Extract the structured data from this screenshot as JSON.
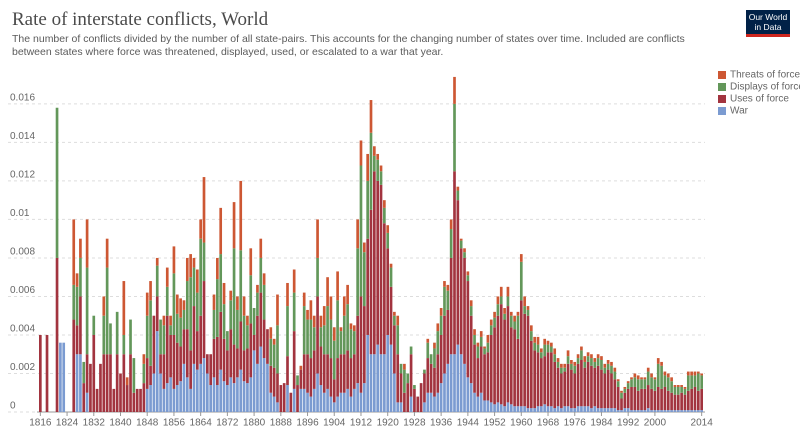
{
  "chart_data": {
    "type": "stacked-bar",
    "title": "Rate of interstate conflicts, World",
    "subtitle": "The number of conflicts divided by the number of all state-pairs. This accounts for the changing number of states over time. Included are conflicts between states where force was threatened, displayed, used, or escalated to a war that year.",
    "logo": "Our World in Data",
    "x": [
      1816,
      1817,
      1818,
      1819,
      1820,
      1821,
      1822,
      1823,
      1824,
      1825,
      1826,
      1827,
      1828,
      1829,
      1830,
      1831,
      1832,
      1833,
      1834,
      1835,
      1836,
      1837,
      1838,
      1839,
      1840,
      1841,
      1842,
      1843,
      1844,
      1845,
      1846,
      1847,
      1848,
      1849,
      1850,
      1851,
      1852,
      1853,
      1854,
      1855,
      1856,
      1857,
      1858,
      1859,
      1860,
      1861,
      1862,
      1863,
      1864,
      1865,
      1866,
      1867,
      1868,
      1869,
      1870,
      1871,
      1872,
      1873,
      1874,
      1875,
      1876,
      1877,
      1878,
      1879,
      1880,
      1881,
      1882,
      1883,
      1884,
      1885,
      1886,
      1887,
      1888,
      1889,
      1890,
      1891,
      1892,
      1893,
      1894,
      1895,
      1896,
      1897,
      1898,
      1899,
      1900,
      1901,
      1902,
      1903,
      1904,
      1905,
      1906,
      1907,
      1908,
      1909,
      1910,
      1911,
      1912,
      1913,
      1914,
      1915,
      1916,
      1917,
      1918,
      1919,
      1920,
      1921,
      1922,
      1923,
      1924,
      1925,
      1926,
      1927,
      1928,
      1929,
      1930,
      1931,
      1932,
      1933,
      1934,
      1935,
      1936,
      1937,
      1938,
      1939,
      1940,
      1941,
      1942,
      1943,
      1944,
      1945,
      1946,
      1947,
      1948,
      1949,
      1950,
      1951,
      1952,
      1953,
      1954,
      1955,
      1956,
      1957,
      1958,
      1959,
      1960,
      1961,
      1962,
      1963,
      1964,
      1965,
      1966,
      1967,
      1968,
      1969,
      1970,
      1971,
      1972,
      1973,
      1974,
      1975,
      1976,
      1977,
      1978,
      1979,
      1980,
      1981,
      1982,
      1983,
      1984,
      1985,
      1986,
      1987,
      1988,
      1989,
      1990,
      1991,
      1992,
      1993,
      1994,
      1995,
      1996,
      1997,
      1998,
      1999,
      2000,
      2001,
      2002,
      2003,
      2004,
      2005,
      2006,
      2007,
      2008,
      2009,
      2010,
      2011,
      2012,
      2013,
      2014
    ],
    "series": [
      {
        "name": "War",
        "color": "#7b9bd1",
        "values": [
          0,
          0,
          0,
          0,
          0,
          0,
          0.0036,
          0.0036,
          0,
          0,
          0,
          0.003,
          0.003,
          0,
          0.001,
          0,
          0,
          0,
          0,
          0,
          0,
          0,
          0,
          0,
          0,
          0,
          0,
          0,
          0,
          0,
          0,
          0,
          0.0012,
          0.0014,
          0.002,
          0.0042,
          0.002,
          0.0012,
          0.0015,
          0.0018,
          0.0012,
          0.0014,
          0.0016,
          0.0025,
          0.0018,
          0.0012,
          0.0025,
          0.0022,
          0.0025,
          0.0028,
          0.002,
          0.0014,
          0.0018,
          0.0014,
          0.0022,
          0.0016,
          0.0014,
          0.0018,
          0.0015,
          0.0018,
          0.0022,
          0.0016,
          0.0015,
          0.0018,
          0.0032,
          0.0025,
          0.0034,
          0.0028,
          0.0025,
          0.001,
          0.0008,
          0.0005,
          0,
          0,
          0.0014,
          0,
          0.0012,
          0,
          0.0012,
          0.0012,
          0.001,
          0.0008,
          0.0012,
          0.002,
          0.0014,
          0.001,
          0.0012,
          0.0008,
          0.0005,
          0.0008,
          0.001,
          0.001,
          0.0012,
          0.0008,
          0.0012,
          0.0015,
          0.001,
          0.0015,
          0.004,
          0.003,
          0.003,
          0.0035,
          0.003,
          0.003,
          0.004,
          0.0035,
          0.002,
          0.0005,
          0.0005,
          0,
          0,
          0.0008,
          0,
          0,
          0,
          0.0005,
          0.001,
          0.001,
          0.0008,
          0.001,
          0.0015,
          0.002,
          0.0025,
          0.003,
          0.003,
          0.0035,
          0.003,
          0.0025,
          0.0018,
          0.0015,
          0.001,
          0.0008,
          0.001,
          0.0006,
          0.0006,
          0.0005,
          0.0004,
          0.0005,
          0.0004,
          0.0003,
          0.0005,
          0.0004,
          0.0003,
          0.0003,
          0.0003,
          0.0003,
          0.0002,
          0.0002,
          0.0002,
          0.0003,
          0.0003,
          0.0004,
          0.0003,
          0.0003,
          0.0002,
          0.0003,
          0.0002,
          0.0003,
          0.0003,
          0.0002,
          0.0002,
          0.0003,
          0.0003,
          0.0003,
          0.0003,
          0.0002,
          0.0003,
          0.0002,
          0.0002,
          0.0002,
          0.0002,
          0.0002,
          0.0002,
          0.0001,
          0.0001,
          0.0002,
          0.0002,
          0.0001,
          0.0001,
          0.0001,
          0.0001,
          0.0001,
          0.0002,
          0.0001,
          0.0001,
          0.0001,
          0.0001,
          0.0001,
          0.0001,
          0.0001,
          0.0001,
          0.0001,
          0.0001,
          0.0001,
          0.0001,
          0.0001,
          0.0001,
          0.0001,
          0.0001
        ]
      },
      {
        "name": "Uses of force",
        "color": "#a2343f",
        "values": [
          0.004,
          0,
          0.004,
          0,
          0,
          0.008,
          0,
          0,
          0,
          0,
          0.0048,
          0.0015,
          0.003,
          0.0015,
          0.002,
          0.0025,
          0.004,
          0.0012,
          0.0025,
          0.003,
          0.003,
          0.003,
          0.0012,
          0.003,
          0.002,
          0.003,
          0.0014,
          0.003,
          0.001,
          0.0012,
          0.0012,
          0.0015,
          0.0016,
          0.001,
          0.003,
          0.0018,
          0.001,
          0.0018,
          0.0035,
          0.0022,
          0.0028,
          0.0022,
          0.0018,
          0.0018,
          0.0025,
          0.002,
          0.003,
          0.002,
          0.0025,
          0.004,
          0.001,
          0.0016,
          0.002,
          0.0025,
          0.003,
          0.0022,
          0.0018,
          0.0025,
          0.002,
          0.0015,
          0.0025,
          0.0016,
          0.0018,
          0.0028,
          0.0008,
          0.0025,
          0.0028,
          0.002,
          0.0018,
          0.0014,
          0.0015,
          0.0015,
          0.0014,
          0.0015,
          0.0015,
          0.001,
          0.003,
          0.0014,
          0.001,
          0.0018,
          0.002,
          0.002,
          0.002,
          0.004,
          0.002,
          0.002,
          0.0018,
          0.002,
          0.0012,
          0.002,
          0.002,
          0.002,
          0.002,
          0.002,
          0.0018,
          0.0035,
          0.005,
          0.004,
          0.005,
          0.0075,
          0.0095,
          0.0085,
          0.0088,
          0.0068,
          0.0045,
          0.003,
          0.0025,
          0.0025,
          0.0015,
          0.001,
          0.0015,
          0.0022,
          0.0012,
          0.0008,
          0.0015,
          0.0015,
          0.0018,
          0.0015,
          0.0015,
          0.002,
          0.0025,
          0.003,
          0.0028,
          0.005,
          0.0095,
          0.0075,
          0.0055,
          0.0055,
          0.005,
          0.0035,
          0.0025,
          0.002,
          0.0024,
          0.0024,
          0.0025,
          0.0035,
          0.004,
          0.0045,
          0.0052,
          0.0045,
          0.005,
          0.004,
          0.004,
          0.0035,
          0.0055,
          0.0048,
          0.0048,
          0.0035,
          0.003,
          0.0028,
          0.0025,
          0.0025,
          0.0028,
          0.0028,
          0.0024,
          0.002,
          0.0018,
          0.0018,
          0.0022,
          0.002,
          0.0018,
          0.0022,
          0.0024,
          0.002,
          0.0023,
          0.0022,
          0.002,
          0.0022,
          0.002,
          0.0018,
          0.002,
          0.0018,
          0.0015,
          0.0012,
          0.0006,
          0.0008,
          0.001,
          0.0012,
          0.0012,
          0.001,
          0.0011,
          0.0011,
          0.0012,
          0.0011,
          0.001,
          0.0012,
          0.0011,
          0.0012,
          0.001,
          0.0009,
          0.0008,
          0.0008,
          0.0009,
          0.0008,
          0.001,
          0.0011,
          0.0012,
          0.001,
          0.0011
        ]
      },
      {
        "name": "Displays of force",
        "color": "#63975a",
        "values": [
          0,
          0,
          0,
          0,
          0,
          0.0078,
          0,
          0,
          0,
          0,
          0.0018,
          0.002,
          0.002,
          0.0011,
          0.0045,
          0,
          0.001,
          0,
          0,
          0.002,
          0.0045,
          0.0016,
          0,
          0.0022,
          0,
          0.001,
          0,
          0.0018,
          0.0018,
          0,
          0,
          0.001,
          0.0022,
          0.0034,
          0,
          0.0016,
          0.0018,
          0.0015,
          0.0015,
          0.0005,
          0.0032,
          0.0015,
          0.0015,
          0.001,
          0.0025,
          0.0038,
          0.002,
          0.002,
          0.004,
          0.002,
          0,
          0,
          0.0015,
          0.003,
          0.003,
          0.0018,
          0.001,
          0.0015,
          0.005,
          0.002,
          0.0037,
          0.0018,
          0.0012,
          0.0025,
          0.0014,
          0.0012,
          0.0018,
          0.0018,
          0,
          0.0014,
          0.0012,
          0.0025,
          0,
          0,
          0.0026,
          0,
          0.002,
          0.0005,
          0,
          0.0025,
          0.0018,
          0.002,
          0.0012,
          0.002,
          0.001,
          0.0015,
          0.0025,
          0.002,
          0.002,
          0.003,
          0.0012,
          0.002,
          0.0024,
          0.0015,
          0.0012,
          0.0035,
          0.0068,
          0.0028,
          0.003,
          0.004,
          0.0008,
          0.0011,
          0.0007,
          0.0008,
          0.0008,
          0.001,
          0.0005,
          0.0015,
          0.0005,
          0.0012,
          0.0005,
          0.0004,
          0.0002,
          0,
          0,
          0.0002,
          0.0008,
          0.0005,
          0.001,
          0.0012,
          0.001,
          0.0015,
          0.001,
          0.0015,
          0.0035,
          0.0005,
          0.0004,
          0.0003,
          0.0003,
          0.0005,
          0.0005,
          0.0006,
          0.0005,
          0.0003,
          0.0005,
          0.0005,
          0.0005,
          0.0006,
          0.0004,
          0.0003,
          0.0005,
          0.0006,
          0.0004,
          0.0012,
          0.002,
          0.0004,
          0.0003,
          0.0005,
          0.0004,
          0.0004,
          0.0003,
          0.0006,
          0.0004,
          0.0003,
          0.0004,
          0.0003,
          0.0003,
          0.0002,
          0.0004,
          0.0003,
          0.0004,
          0.0003,
          0.0005,
          0.0003,
          0.0003,
          0.0004,
          0.0003,
          0.0004,
          0.0005,
          0.0003,
          0.0003,
          0.0004,
          0.0004,
          0.0003,
          0.0003,
          0.0002,
          0.0003,
          0.0004,
          0.0005,
          0.0006,
          0.0005,
          0.0005,
          0.0007,
          0.0006,
          0.0006,
          0.0012,
          0.0012,
          0.0006,
          0.0007,
          0.0006,
          0.0004,
          0.0004,
          0.0003,
          0.0003,
          0.0008,
          0.0007,
          0.0006,
          0.0009,
          0.0007
        ]
      },
      {
        "name": "Threats of force",
        "color": "#cd5733",
        "values": [
          0,
          0,
          0,
          0,
          0,
          0,
          0,
          0,
          0,
          0,
          0.0034,
          0.0007,
          0.001,
          0,
          0.0025,
          0,
          0,
          0,
          0,
          0.001,
          0.0015,
          0,
          0,
          0,
          0,
          0.0028,
          0.0004,
          0,
          0,
          0,
          0,
          0.0005,
          0.0012,
          0.001,
          0,
          0.0004,
          0,
          0.0005,
          0.001,
          0.0005,
          0.0014,
          0.001,
          0.001,
          0.0005,
          0.0012,
          0.0012,
          0.0005,
          0.0012,
          0.001,
          0.0034,
          0,
          0,
          0.0008,
          0.0011,
          0.0024,
          0.0011,
          0,
          0.0005,
          0.0024,
          0.0007,
          0.0036,
          0.001,
          0.0005,
          0.0014,
          0,
          0.0004,
          0.001,
          0.0006,
          0,
          0.0006,
          0.0003,
          0.0016,
          0,
          0,
          0.0012,
          0,
          0.0012,
          0,
          0.0002,
          0.0007,
          0.0005,
          0.001,
          0.0006,
          0.002,
          0.0006,
          0.001,
          0.0015,
          0.0012,
          0.0007,
          0.0015,
          0.0002,
          0.001,
          0.001,
          0.0003,
          0.0003,
          0.0015,
          0.0013,
          0.0005,
          0.0014,
          0.0017,
          0.0005,
          0.0003,
          0.0003,
          0.0004,
          0.0004,
          0.0002,
          0.0002,
          0.0005,
          0,
          0.0003,
          0,
          0,
          0,
          0,
          0,
          0,
          0.0002,
          0,
          0.0003,
          0.0004,
          0.0004,
          0.0003,
          0.0003,
          0.0005,
          0.0014,
          0.0002,
          0.0001,
          0.0002,
          0.0002,
          0.0003,
          0.0003,
          0.0002,
          0.0003,
          0.0001,
          0.0004,
          0.0003,
          0.0003,
          0.0004,
          0.0005,
          0.0003,
          0.0005,
          0.0002,
          0.0003,
          0.0002,
          0.0004,
          0.0005,
          0.0002,
          0.0003,
          0.0003,
          0.0004,
          0.0002,
          0.0003,
          0.0002,
          0.0002,
          0.0003,
          0.0002,
          0.0002,
          0.0002,
          0.0003,
          0.0002,
          0.0002,
          0.0002,
          0.0002,
          0.0003,
          0.0002,
          0.0002,
          0.0002,
          0.0002,
          0.0002,
          0.0002,
          0.0002,
          0.0002,
          0.0002,
          0.0001,
          0.0001,
          0.0001,
          0.0001,
          0.0001,
          0.0002,
          0.0002,
          0.0001,
          0.0001,
          0.0002,
          0.0002,
          0.0001,
          0.0003,
          0.0002,
          0.0002,
          0.0002,
          0.0002,
          0.0001,
          0.0001,
          0.0001,
          0.0001,
          0.0002,
          0.0002,
          0.0002,
          0.0001,
          0.0001
        ]
      }
    ],
    "xlim": [
      1815,
      2015
    ],
    "xticks": [
      1816,
      1824,
      1832,
      1840,
      1848,
      1856,
      1864,
      1872,
      1880,
      1888,
      1896,
      1904,
      1912,
      1920,
      1928,
      1936,
      1944,
      1952,
      1960,
      1968,
      1976,
      1984,
      1992,
      2000,
      2014
    ],
    "ylim": [
      0,
      0.0175
    ],
    "yticks": [
      0,
      0.002,
      0.004,
      0.006,
      0.008,
      0.01,
      0.012,
      0.014,
      0.016
    ],
    "grid": true,
    "legend": "top-right"
  }
}
